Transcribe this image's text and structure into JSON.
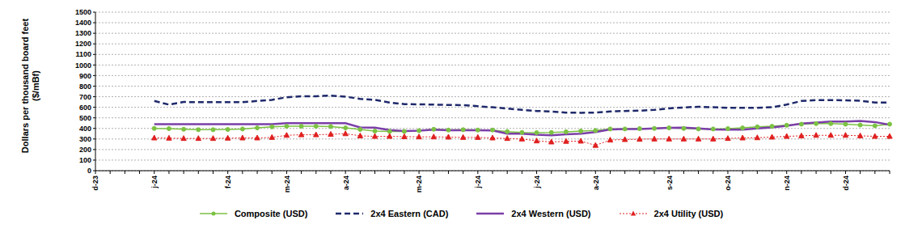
{
  "chart_data": {
    "type": "line",
    "y_label": [
      "Dollars per thousand board feet",
      "($/mBf)"
    ],
    "categories": [
      "d-23",
      null,
      null,
      null,
      "j-24",
      null,
      null,
      null,
      null,
      "f-24",
      null,
      null,
      null,
      "m-24",
      null,
      null,
      null,
      "a-24",
      null,
      null,
      null,
      null,
      "m-24",
      null,
      null,
      null,
      "j-24",
      null,
      null,
      null,
      "j-24",
      null,
      null,
      null,
      "a-24",
      null,
      null,
      null,
      null,
      "s-24",
      null,
      null,
      null,
      "o-24",
      null,
      null,
      null,
      "n-24",
      null,
      null,
      null,
      "d-24",
      null,
      null,
      null
    ],
    "series": [
      {
        "name": "Composite (USD)",
        "color": "#7cc243",
        "marker": "circle",
        "line_style": "solid",
        "values": [
          null,
          null,
          null,
          null,
          400,
          398,
          392,
          388,
          388,
          390,
          395,
          405,
          415,
          420,
          420,
          420,
          418,
          405,
          390,
          375,
          372,
          372,
          378,
          392,
          385,
          388,
          385,
          385,
          370,
          362,
          360,
          362,
          368,
          375,
          380,
          395,
          395,
          398,
          400,
          405,
          400,
          395,
          395,
          398,
          405,
          415,
          420,
          430,
          440,
          445,
          445,
          440,
          432,
          425,
          440
        ]
      },
      {
        "name": "2x4 Eastern (CAD)",
        "color": "#1f2a6b",
        "marker": "none",
        "line_style": "dashed",
        "values": [
          null,
          null,
          null,
          null,
          660,
          625,
          650,
          648,
          648,
          648,
          648,
          660,
          670,
          695,
          705,
          705,
          710,
          700,
          680,
          670,
          645,
          630,
          628,
          625,
          622,
          620,
          610,
          600,
          588,
          575,
          565,
          560,
          550,
          548,
          550,
          560,
          565,
          568,
          575,
          590,
          598,
          605,
          600,
          595,
          595,
          595,
          600,
          625,
          660,
          668,
          668,
          665,
          662,
          645,
          645
        ]
      },
      {
        "name": "2x4 Western (USD)",
        "color": "#7b3fa8",
        "marker": "none",
        "line_style": "solid",
        "values": [
          null,
          null,
          null,
          null,
          440,
          440,
          440,
          440,
          440,
          440,
          440,
          440,
          440,
          450,
          450,
          450,
          450,
          450,
          410,
          408,
          385,
          375,
          378,
          388,
          382,
          382,
          382,
          380,
          350,
          350,
          340,
          335,
          345,
          350,
          365,
          390,
          395,
          395,
          400,
          405,
          408,
          400,
          390,
          388,
          388,
          400,
          410,
          425,
          445,
          455,
          465,
          465,
          470,
          460,
          435
        ]
      },
      {
        "name": "2x4 Utility (USD)",
        "color": "#e02020",
        "marker": "triangle",
        "line_style": "dotted",
        "values": [
          null,
          null,
          null,
          null,
          310,
          308,
          305,
          305,
          305,
          308,
          310,
          310,
          315,
          335,
          340,
          340,
          345,
          350,
          330,
          325,
          325,
          322,
          320,
          320,
          318,
          315,
          315,
          310,
          305,
          300,
          282,
          272,
          278,
          280,
          240,
          290,
          295,
          298,
          300,
          300,
          300,
          300,
          300,
          305,
          310,
          312,
          318,
          325,
          330,
          335,
          335,
          335,
          330,
          325,
          325
        ]
      }
    ],
    "ylim": [
      0,
      1500
    ],
    "yticks": [
      0,
      100,
      200,
      300,
      400,
      500,
      600,
      700,
      800,
      900,
      1000,
      1100,
      1200,
      1300,
      1400,
      1500
    ],
    "grid": true,
    "legend": "bottom"
  }
}
